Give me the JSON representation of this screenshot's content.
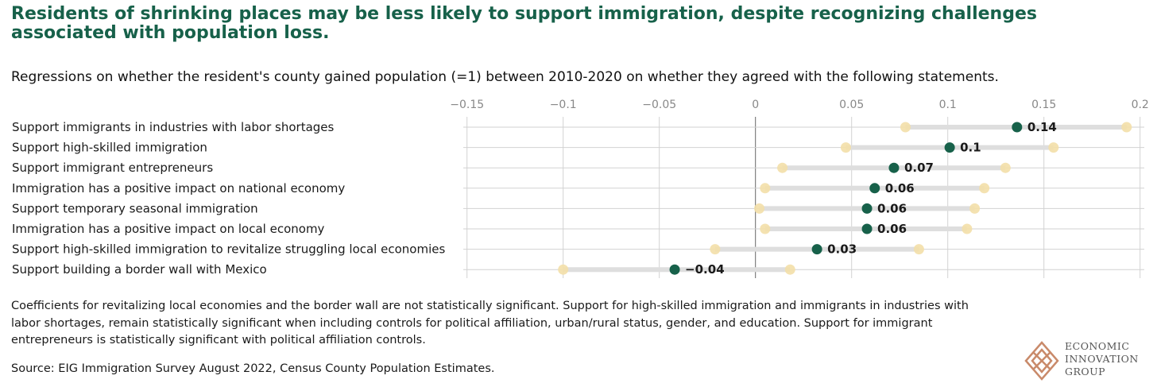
{
  "title": "Residents of shrinking places may be less likely to support immigration, despite recognizing challenges associated with population loss.",
  "subtitle": "Regressions on whether the resident's county gained population (=1) between 2010-2020 on whether they agreed with the following statements.",
  "note": "Coefficients for revitalizing local economies and the border wall are not statistically significant. Support for high-skilled immigration and immigrants in industries with labor shortages, remain statistically significant when including controls for political affiliation, urban/rural status, gender, and education. Support for immigrant entrepreneurs is statistically significant with political affiliation controls.",
  "source": "Source: EIG Immigration Survey August 2022, Census County Population Estimates.",
  "logo": {
    "lines": [
      "ECONOMIC",
      "INNOVATION",
      "GROUP"
    ]
  },
  "colors": {
    "point": "#17614a",
    "ci_end": "#f3dfa8",
    "ci_bar": "#dedede",
    "title": "#17614a"
  },
  "chart_data": {
    "type": "dot-range",
    "xlim": [
      -0.15,
      0.2
    ],
    "xticks": [
      -0.15,
      -0.1,
      -0.05,
      0,
      0.05,
      0.1,
      0.15,
      0.2
    ],
    "xtick_labels": [
      "−0.15",
      "−0.1",
      "−0.05",
      "0",
      "0.05",
      "0.1",
      "0.15",
      "0.2"
    ],
    "grid": true,
    "rows": [
      {
        "label": "Support immigrants in industries with labor shortages",
        "value": 0.136,
        "value_label": "0.14",
        "low": 0.078,
        "high": 0.193
      },
      {
        "label": "Support high-skilled immigration",
        "value": 0.101,
        "value_label": "0.1",
        "low": 0.047,
        "high": 0.155
      },
      {
        "label": "Support immigrant entrepreneurs",
        "value": 0.072,
        "value_label": "0.07",
        "low": 0.014,
        "high": 0.13
      },
      {
        "label": "Immigration has a positive impact on national economy",
        "value": 0.062,
        "value_label": "0.06",
        "low": 0.005,
        "high": 0.119
      },
      {
        "label": "Support temporary seasonal immigration",
        "value": 0.058,
        "value_label": "0.06",
        "low": 0.002,
        "high": 0.114
      },
      {
        "label": "Immigration has a positive impact on local economy",
        "value": 0.058,
        "value_label": "0.06",
        "low": 0.005,
        "high": 0.11
      },
      {
        "label": "Support high-skilled immigration to revitalize struggling local economies",
        "value": 0.032,
        "value_label": "0.03",
        "low": -0.021,
        "high": 0.085
      },
      {
        "label": "Support building a border wall with Mexico",
        "value": -0.042,
        "value_label": "−0.04",
        "low": -0.1,
        "high": 0.018
      }
    ]
  }
}
